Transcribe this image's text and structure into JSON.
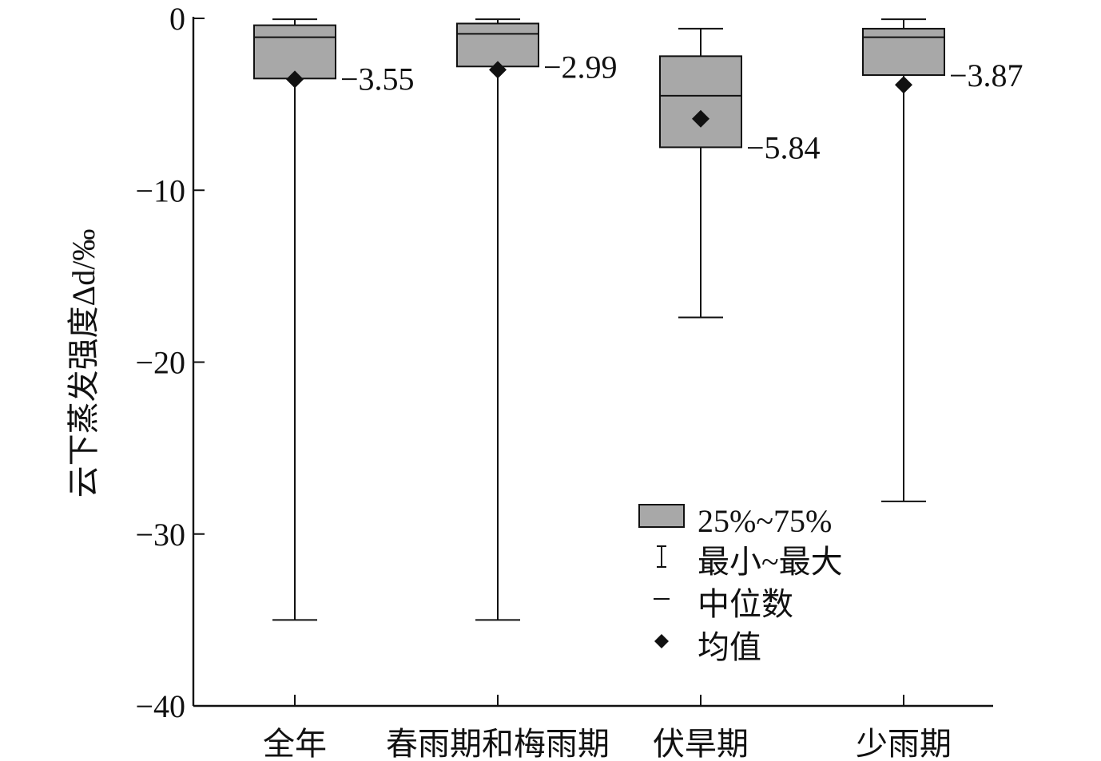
{
  "chart_data": {
    "type": "box",
    "title": "",
    "ylabel": "云下蒸发强度Δd/‰",
    "xlabel": "",
    "ylim": [
      -40,
      0
    ],
    "yticks": [
      0,
      -10,
      -20,
      -30,
      -40
    ],
    "ytick_labels": [
      "0",
      "−10",
      "−20",
      "−30",
      "−40"
    ],
    "categories": [
      "全年",
      "春雨期和梅雨期",
      "伏旱期",
      "少雨期"
    ],
    "boxes": [
      {
        "category": "全年",
        "min": -35,
        "q1": -3.5,
        "median": -1.1,
        "q3": -0.4,
        "max": -0.05,
        "mean": -3.55,
        "mean_label": "−3.55"
      },
      {
        "category": "春雨期和梅雨期",
        "min": -35,
        "q1": -2.8,
        "median": -0.9,
        "q3": -0.3,
        "max": -0.05,
        "mean": -2.99,
        "mean_label": "−2.99"
      },
      {
        "category": "伏旱期",
        "min": -17.4,
        "q1": -7.5,
        "median": -4.5,
        "q3": -2.2,
        "max": -0.6,
        "mean": -5.84,
        "mean_label": "−5.84"
      },
      {
        "category": "少雨期",
        "min": -28.1,
        "q1": -3.3,
        "median": -1.1,
        "q3": -0.6,
        "max": -0.05,
        "mean": -3.87,
        "mean_label": "−3.87"
      }
    ],
    "legend": {
      "position": "lower-right",
      "items": [
        {
          "type": "box",
          "label": "25%~75%"
        },
        {
          "type": "whisker",
          "label": "最小~最大"
        },
        {
          "type": "median",
          "label": "中位数"
        },
        {
          "type": "mean",
          "label": "均值"
        }
      ]
    },
    "colors": {
      "box_fill": "#a8a8a8",
      "line": "#111111",
      "mean_marker": "#111111"
    },
    "grid": false
  }
}
